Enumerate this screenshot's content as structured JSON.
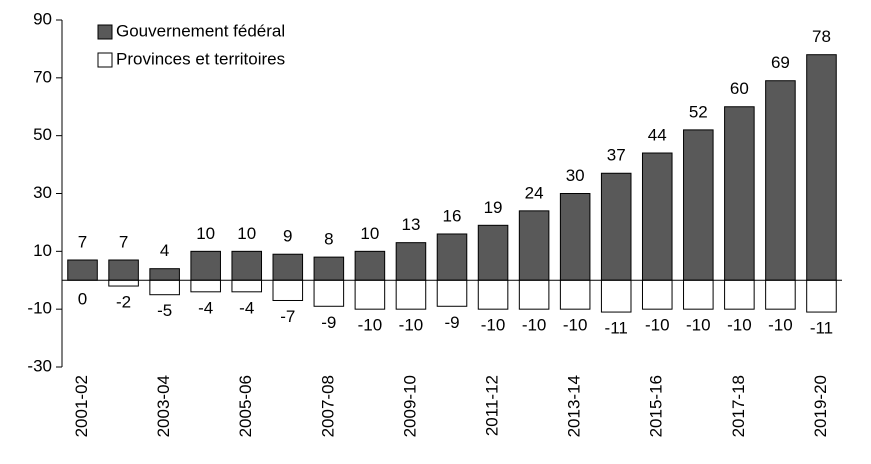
{
  "chart_data": {
    "type": "bar",
    "categories": [
      "2001-02",
      null,
      "2003-04",
      null,
      "2005-06",
      null,
      "2007-08",
      null,
      "2009-10",
      null,
      "2011-12",
      null,
      "2013-14",
      null,
      "2015-16",
      null,
      "2017-18",
      null,
      "2019-20"
    ],
    "series": [
      {
        "name": "Gouvernement fédéral",
        "color": "#595959",
        "values": [
          7,
          7,
          4,
          10,
          10,
          9,
          8,
          10,
          13,
          16,
          19,
          24,
          30,
          37,
          44,
          52,
          60,
          69,
          78
        ]
      },
      {
        "name": "Provinces et territoires",
        "color": "#ffffff",
        "values": [
          0,
          -2,
          -5,
          -4,
          -4,
          -7,
          -9,
          -10,
          -10,
          -9,
          -10,
          -10,
          -10,
          -11,
          -10,
          -10,
          -10,
          -10,
          -11
        ]
      }
    ],
    "ylim": [
      -30,
      90
    ],
    "yticks": [
      -30,
      -10,
      10,
      30,
      50,
      70,
      90
    ],
    "legend": "upper left",
    "grid": false
  }
}
